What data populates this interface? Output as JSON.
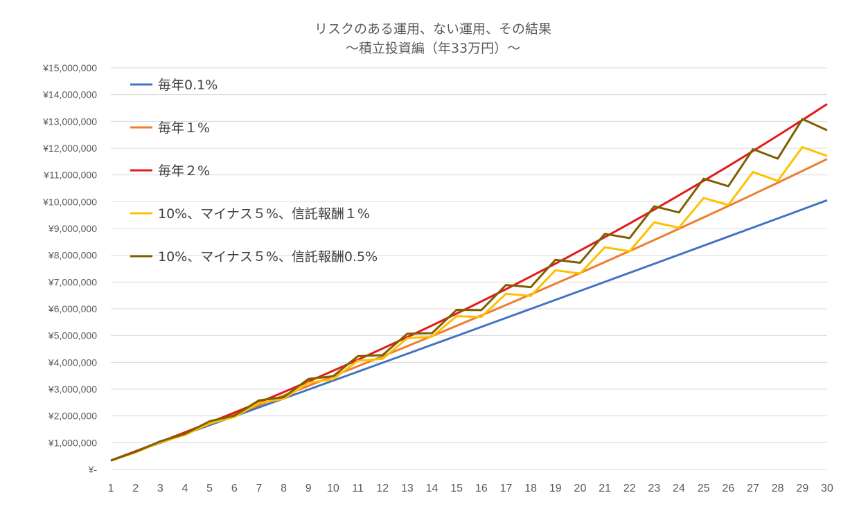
{
  "chart_data": {
    "type": "line",
    "title": [
      "リスクのある運用、ない運用、その結果",
      "～積立投資編（年33万円）～"
    ],
    "xlabel": "",
    "ylabel": "",
    "x": [
      1,
      2,
      3,
      4,
      5,
      6,
      7,
      8,
      9,
      10,
      11,
      12,
      13,
      14,
      15,
      16,
      17,
      18,
      19,
      20,
      21,
      22,
      23,
      24,
      25,
      26,
      27,
      28,
      29,
      30
    ],
    "ylim": [
      0,
      15000000
    ],
    "yticks": [
      0,
      1000000,
      2000000,
      3000000,
      4000000,
      5000000,
      6000000,
      7000000,
      8000000,
      9000000,
      10000000,
      11000000,
      12000000,
      13000000,
      14000000,
      15000000
    ],
    "ytick_labels": [
      "¥-",
      "¥1,000,000",
      "¥2,000,000",
      "¥3,000,000",
      "¥4,000,000",
      "¥5,000,000",
      "¥6,000,000",
      "¥7,000,000",
      "¥8,000,000",
      "¥9,000,000",
      "¥10,000,000",
      "¥11,000,000",
      "¥12,000,000",
      "¥13,000,000",
      "¥14,000,000",
      "¥15,000,000"
    ],
    "grid": true,
    "legend_position": "top-left",
    "series": [
      {
        "name": "毎年0.1%",
        "color": "#4472c4",
        "values": [
          330330,
          660990,
          991981,
          1323303,
          1654956,
          1986941,
          2319258,
          2651907,
          2984889,
          3318204,
          3651852,
          3985834,
          4320150,
          4654800,
          4989785,
          5325105,
          5660760,
          5996751,
          6333078,
          6669741,
          7006741,
          7344078,
          7681752,
          8019764,
          8358114,
          8696802,
          9035829,
          9375195,
          9714900,
          10054945
        ]
      },
      {
        "name": "毎年１%",
        "color": "#ed7d31",
        "values": [
          333300,
          669933,
          1009932,
          1353331,
          1700165,
          2050467,
          2404272,
          2761615,
          3122531,
          3487057,
          3855227,
          4227080,
          4602651,
          4981977,
          5365097,
          5752048,
          6142868,
          6537597,
          6936273,
          7338936,
          7745625,
          8156381,
          8571245,
          8990257,
          9413460,
          9840894,
          10272603,
          10708629,
          11149015,
          11593805
        ]
      },
      {
        "name": "毎年２%",
        "color": "#e31a1c",
        "values": [
          336600,
          679932,
          1030130,
          1387333,
          1751680,
          2123313,
          2502380,
          2889027,
          3283402,
          3685660,
          4095953,
          4514437,
          4941266,
          5376611,
          5820643,
          6273535,
          6735466,
          7206615,
          7687167,
          8177311,
          8677237,
          9187141,
          9707223,
          10237687,
          10778742,
          11330601,
          11893483,
          12467611,
          13053213,
          13650520
        ]
      },
      {
        "name": "10%、マイナス５%、信託報酬１%",
        "color": "#ffc000",
        "values": [
          330000,
          640000,
          1010000,
          1290000,
          1720000,
          1960000,
          2480000,
          2640000,
          3240000,
          3370000,
          4060000,
          4130000,
          4900000,
          4960000,
          5720000,
          5700000,
          6560000,
          6480000,
          7440000,
          7320000,
          8300000,
          8150000,
          9230000,
          9030000,
          10140000,
          9880000,
          11110000,
          10780000,
          12040000,
          11710000
        ]
      },
      {
        "name": "10%、マイナス５%、信託報酬0.5%",
        "color": "#7f6000",
        "values": [
          330000,
          660000,
          1050000,
          1330000,
          1800000,
          2010000,
          2580000,
          2700000,
          3380000,
          3480000,
          4230000,
          4270000,
          5070000,
          5090000,
          5960000,
          5950000,
          6890000,
          6810000,
          7830000,
          7720000,
          8800000,
          8640000,
          9830000,
          9600000,
          10860000,
          10580000,
          11960000,
          11610000,
          13090000,
          12670000
        ]
      }
    ]
  }
}
